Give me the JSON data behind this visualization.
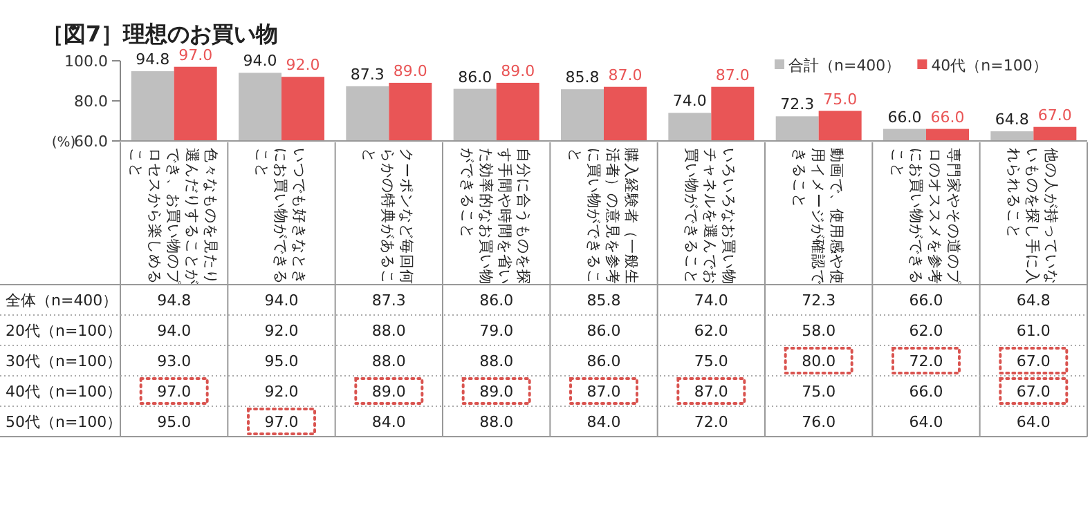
{
  "chart_data": [
    {
      "type": "bar",
      "title": "［図7］理想のお買い物",
      "ylabel": "(%)",
      "legend": "top right",
      "grid": false,
      "categories": [
        "色々なものを見たり選んだりすることができ、お買い物のプロセスから楽しめること",
        "いつでも好きなときにお買い物ができること",
        "クーポンなど毎回何らかの特典があること",
        "自分に合うものを探す手間や時間を省いた効率的なお買い物ができること",
        "購入経験者（一般生活者）の意見を参考に買い物ができること",
        "いろいろなお買い物チャネルを選んでお買い物ができること",
        "動画で、使用感や使用イメージが確認できること",
        "専門家やその道のプロのオススメを参考にお買い物ができること",
        "他の人が持っていないものを探し手に入れられること"
      ],
      "ylim": [
        60,
        100
      ],
      "yticks": [
        {
          "value": 60,
          "label": "60.0"
        },
        {
          "value": 80,
          "label": "80.0"
        },
        {
          "value": 100,
          "label": "100.0"
        }
      ],
      "series": [
        {
          "name": "合計（n=400）",
          "color": "#bfbfbf",
          "values": [
            94.8,
            94.0,
            87.3,
            86.0,
            85.8,
            74.0,
            72.3,
            66.0,
            64.8
          ],
          "value_labels": [
            "94.8",
            "94.0",
            "87.3",
            "86.0",
            "85.8",
            "74.0",
            "72.3",
            "66.0",
            "64.8"
          ]
        },
        {
          "name": "40代（n=100）",
          "color": "#e95556",
          "values": [
            97.0,
            92.0,
            89.0,
            89.0,
            87.0,
            87.0,
            75.0,
            66.0,
            67.0
          ],
          "value_labels": [
            "97.0",
            "92.0",
            "89.0",
            "89.0",
            "87.0",
            "87.0",
            "75.0",
            "66.0",
            "67.0"
          ]
        }
      ]
    },
    {
      "type": "heatmap",
      "categories": [
        null,
        null,
        null,
        null,
        null,
        null,
        null,
        null,
        null
      ],
      "y_categories": [
        "全体（n=400）",
        "20代（n=100）",
        "30代（n=100）",
        "40代（n=100）",
        "50代（n=100）"
      ],
      "cells": [
        [
          94.8,
          94.0,
          87.3,
          86.0,
          85.8,
          74.0,
          72.3,
          66.0,
          64.8
        ],
        [
          94.0,
          92.0,
          88.0,
          79.0,
          86.0,
          62.0,
          58.0,
          62.0,
          61.0
        ],
        [
          93.0,
          95.0,
          88.0,
          88.0,
          86.0,
          75.0,
          80.0,
          72.0,
          67.0
        ],
        [
          97.0,
          92.0,
          89.0,
          89.0,
          87.0,
          87.0,
          75.0,
          66.0,
          67.0
        ],
        [
          95.0,
          97.0,
          84.0,
          88.0,
          84.0,
          72.0,
          76.0,
          64.0,
          64.0
        ]
      ],
      "cell_labels": [
        [
          "94.8",
          "94.0",
          "87.3",
          "86.0",
          "85.8",
          "74.0",
          "72.3",
          "66.0",
          "64.8"
        ],
        [
          "94.0",
          "92.0",
          "88.0",
          "79.0",
          "86.0",
          "62.0",
          "58.0",
          "62.0",
          "61.0"
        ],
        [
          "93.0",
          "95.0",
          "88.0",
          "88.0",
          "86.0",
          "75.0",
          "80.0",
          "72.0",
          "67.0"
        ],
        [
          "97.0",
          "92.0",
          "89.0",
          "89.0",
          "87.0",
          "87.0",
          "75.0",
          "66.0",
          "67.0"
        ],
        [
          "95.0",
          "97.0",
          "84.0",
          "88.0",
          "84.0",
          "72.0",
          "76.0",
          "64.0",
          "64.0"
        ]
      ]
    }
  ]
}
